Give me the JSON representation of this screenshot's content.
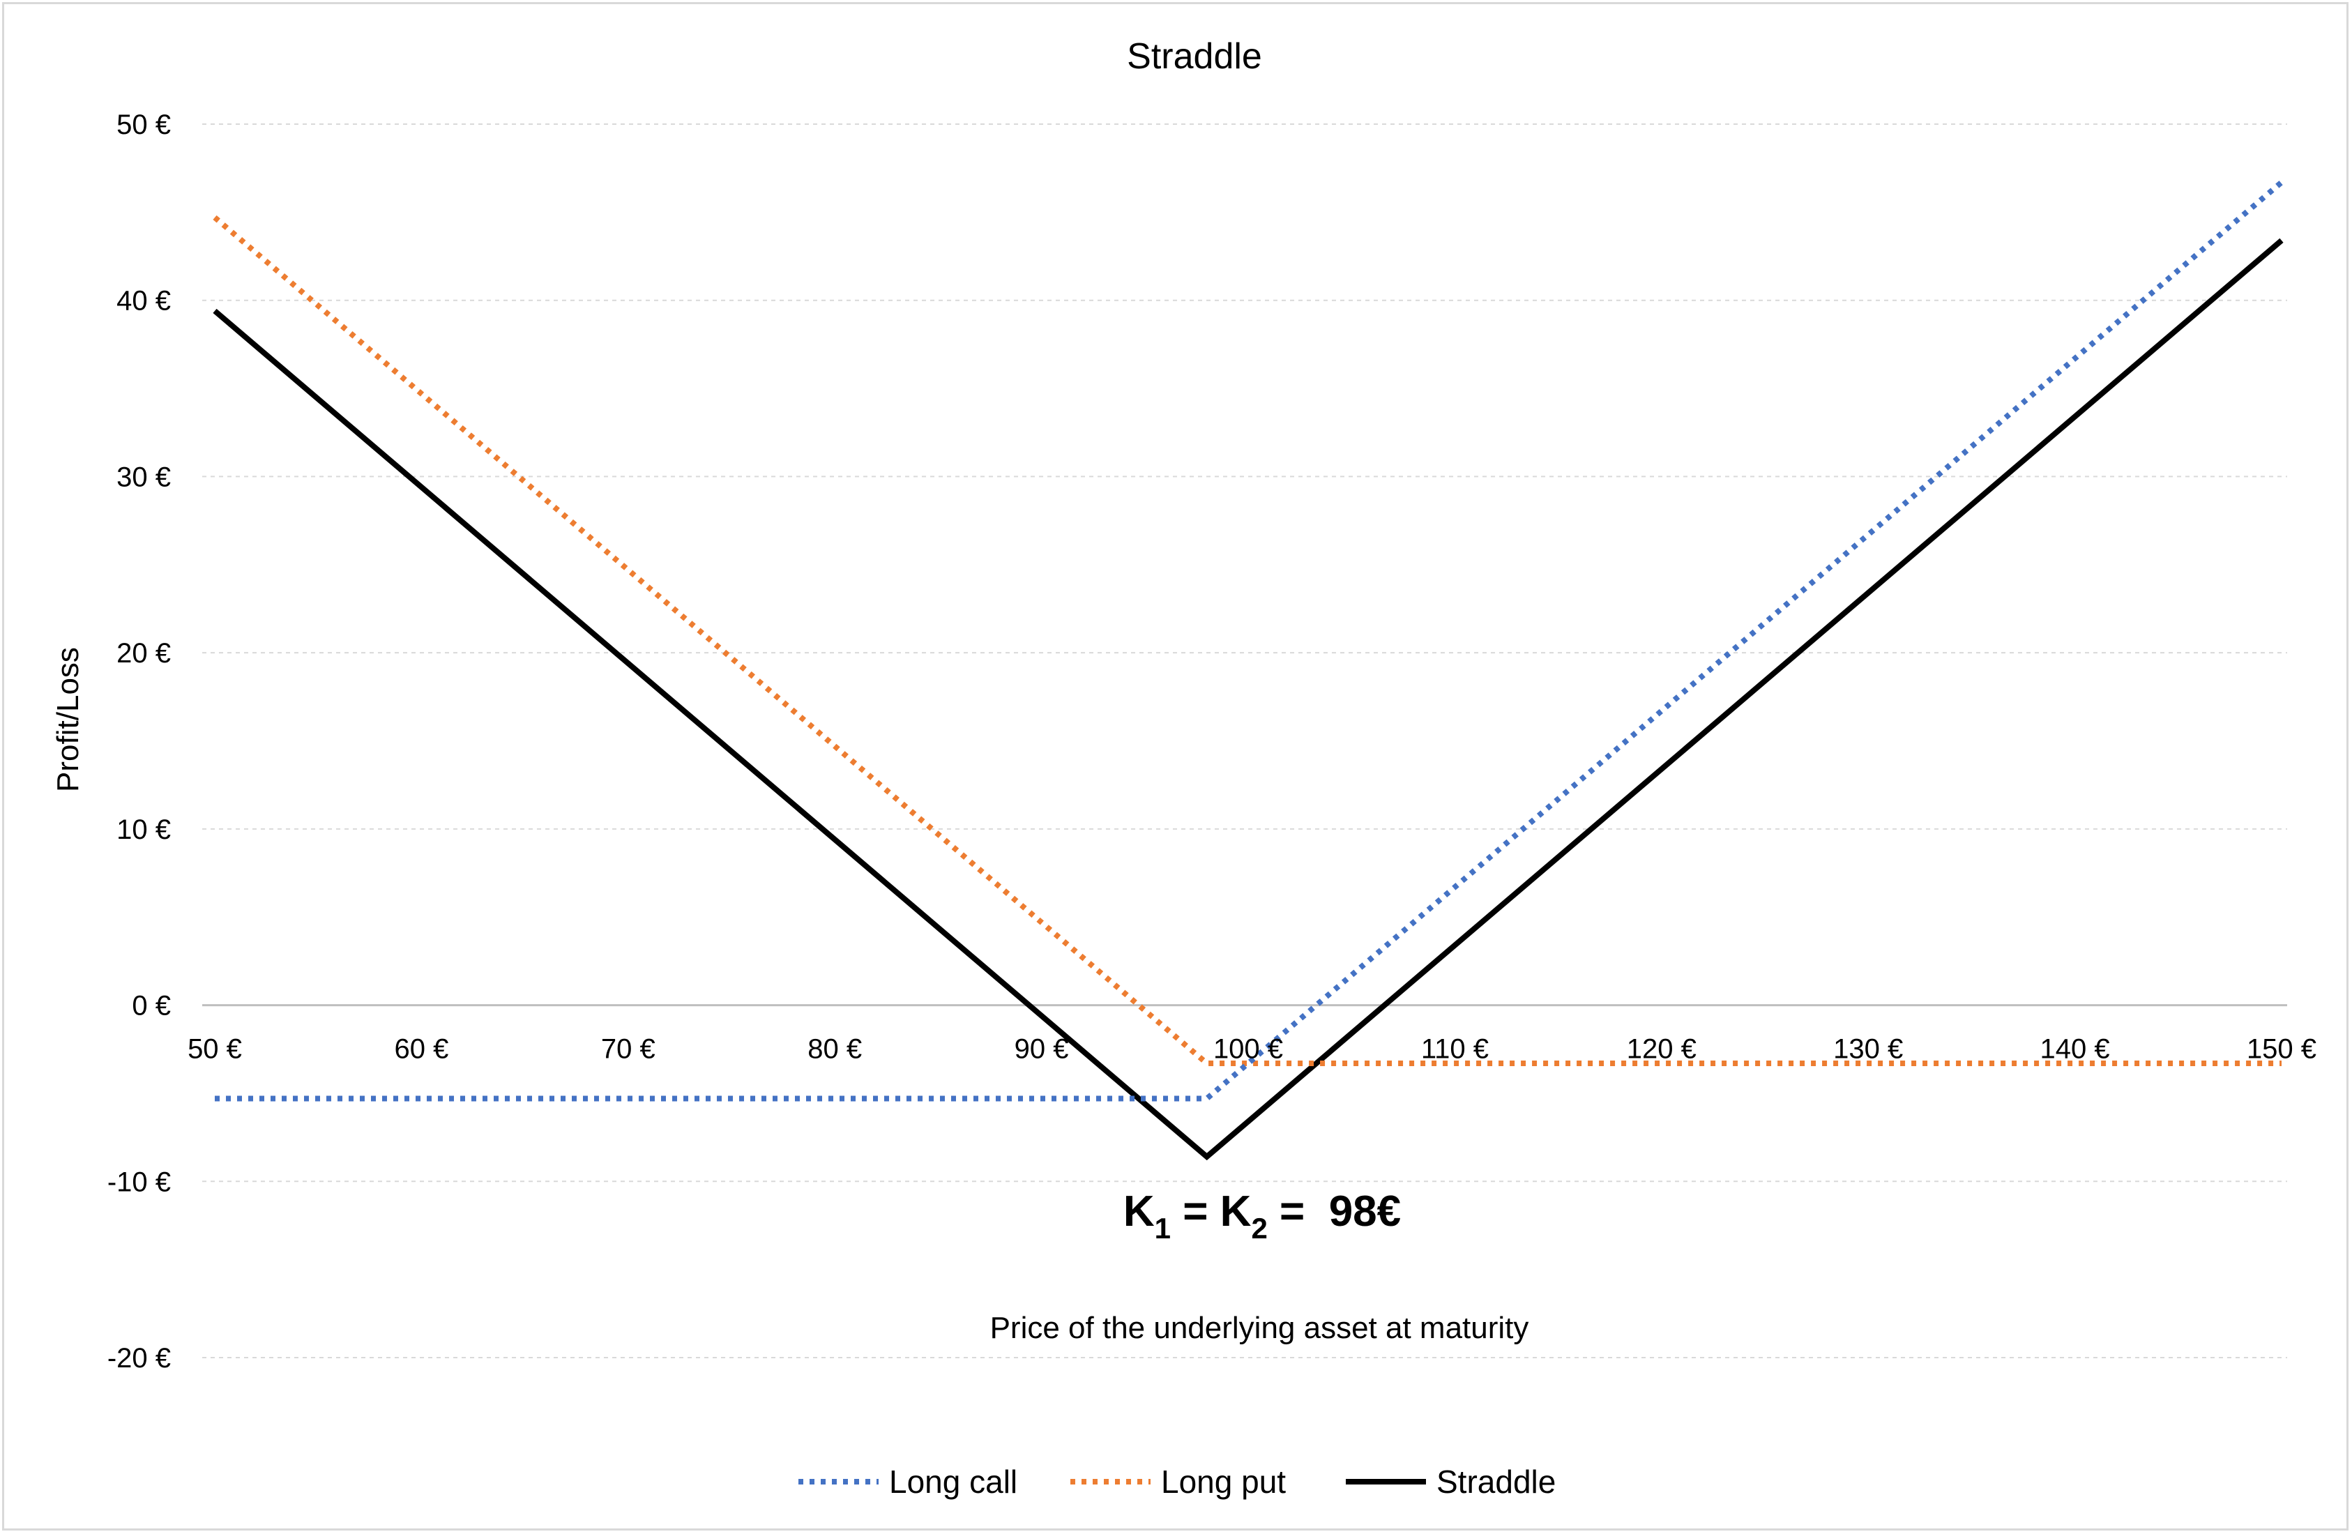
{
  "chart_data": {
    "type": "line",
    "title": "Straddle",
    "xlabel": "Price of the underlying asset at maturity",
    "ylabel": "Profit/Loss",
    "xlim": [
      50,
      150
    ],
    "ylim": [
      -20,
      50
    ],
    "x_ticks": [
      50,
      60,
      70,
      80,
      90,
      100,
      110,
      120,
      130,
      140,
      150
    ],
    "x_tick_labels": [
      "50 €",
      "60 €",
      "70 €",
      "80 €",
      "90 €",
      "100 €",
      "110 €",
      "120 €",
      "130 €",
      "140 €",
      "150 €"
    ],
    "y_ticks": [
      50,
      40,
      30,
      20,
      10,
      0,
      -10,
      -20
    ],
    "y_tick_labels": [
      "50 €",
      "40 €",
      "30 €",
      "20 €",
      "10 €",
      "0 €",
      "-10 €",
      "-20 €"
    ],
    "grid": true,
    "legend_position": "bottom",
    "series": [
      {
        "name": "Long call",
        "color": "#4472c4",
        "style": "dotted",
        "x": [
          50,
          98,
          150
        ],
        "y": [
          -5.3,
          -5.3,
          46.7
        ]
      },
      {
        "name": "Long put",
        "color": "#ed7d31",
        "style": "dotted",
        "x": [
          50,
          98,
          150
        ],
        "y": [
          44.7,
          -3.3,
          -3.3
        ]
      },
      {
        "name": "Straddle",
        "color": "#000000",
        "style": "solid",
        "x": [
          50,
          98,
          150
        ],
        "y": [
          39.4,
          -8.6,
          43.4
        ]
      }
    ],
    "annotation": {
      "k1_base": "K",
      "k1_sub": "1",
      "eq1": " = ",
      "k2_base": "K",
      "k2_sub": "2",
      "eq2": " =  98€",
      "x": 98
    }
  }
}
